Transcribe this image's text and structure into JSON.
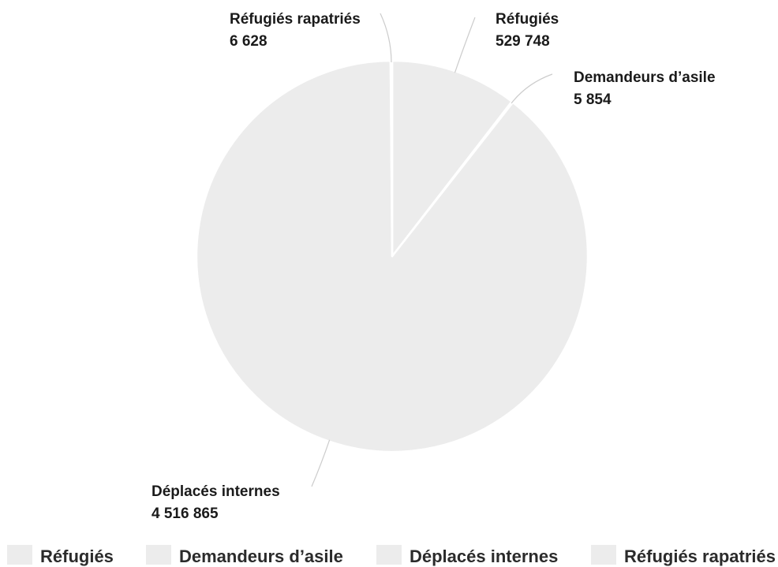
{
  "chart_data": {
    "type": "pie",
    "title": "",
    "slices": [
      {
        "name": "Réfugiés",
        "value": 529748,
        "value_label": "529 748",
        "color": "#ececec"
      },
      {
        "name": "Demandeurs d’asile",
        "value": 5854,
        "value_label": "5 854",
        "color": "#ececec"
      },
      {
        "name": "Déplacés internes",
        "value": 4516865,
        "value_label": "4 516 865",
        "color": "#ececec"
      },
      {
        "name": "Réfugiés rapatriés",
        "value": 6628,
        "value_label": "6 628",
        "color": "#ececec"
      }
    ],
    "legend_position": "bottom",
    "slice_border_color": "#ffffff",
    "leader_line_color": "#cccccc"
  }
}
